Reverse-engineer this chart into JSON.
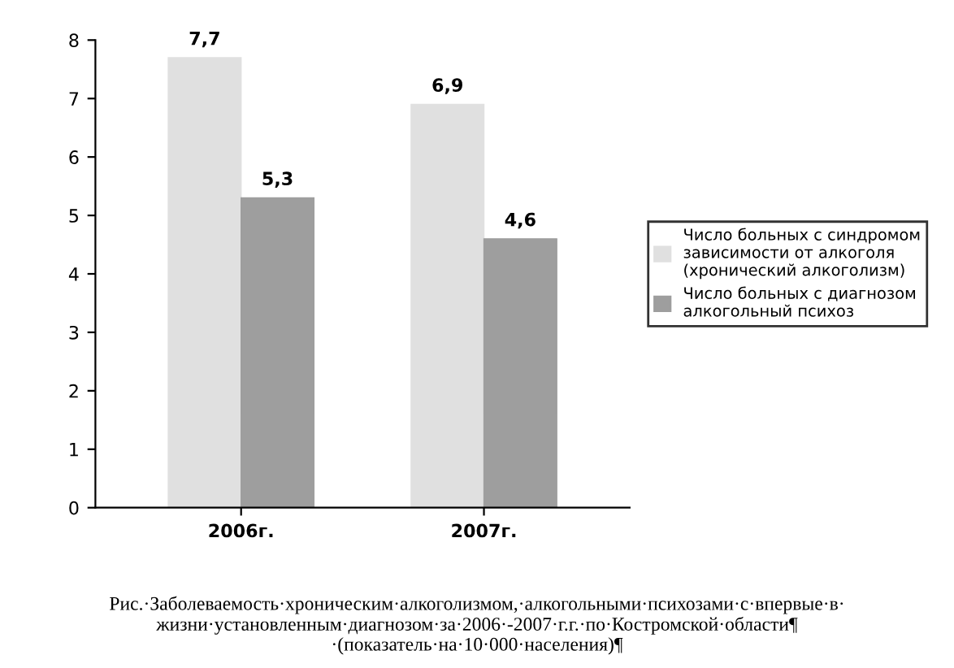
{
  "chart_data": {
    "type": "bar",
    "categories": [
      "2006г.",
      "2007г."
    ],
    "series": [
      {
        "name": "Число больных с синдромом зависимости от алкоголя (хронический алкоголизм)",
        "color": "#e0e0e0",
        "values": [
          7.7,
          6.9
        ],
        "value_labels": [
          "7,7",
          "6,9"
        ]
      },
      {
        "name": "Число больных с диагнозом алкогольный психоз",
        "color": "#9e9e9e",
        "values": [
          5.3,
          4.6
        ],
        "value_labels": [
          "5,3",
          "4,6"
        ]
      }
    ],
    "ylim": [
      0,
      8
    ],
    "yticks": [
      0,
      1,
      2,
      3,
      4,
      5,
      6,
      7,
      8
    ],
    "grid": false,
    "legend": "right",
    "annotations": [
      "Рис.·Заболеваемость·хроническим·алкоголизмом,·алкогольными·психозами·с·впервые·в·\nжизни·установленным·диагнозом·за·2006·-2007·г.г.·по·Костромской·области¶\n·(показатель·на·10·000·населения)¶"
    ]
  }
}
